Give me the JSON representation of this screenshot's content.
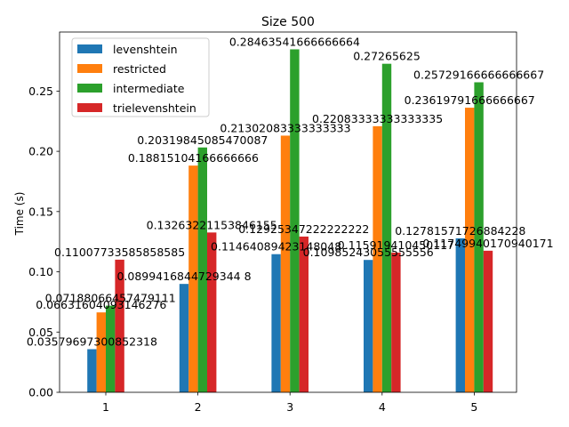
{
  "chart_data": {
    "type": "bar",
    "title": "Size 500",
    "xlabel": "",
    "ylabel": "Time (s)",
    "categories": [
      "1",
      "2",
      "3",
      "4",
      "5"
    ],
    "ylim": [
      0,
      0.299
    ],
    "yticks": [
      "0.00",
      "0.05",
      "0.10",
      "0.15",
      "0.20",
      "0.25"
    ],
    "ytick_values": [
      0,
      0.05,
      0.1,
      0.15,
      0.2,
      0.25
    ],
    "legend_position": "top-left",
    "grid": false,
    "series": [
      {
        "name": "levenshtein",
        "color": "#1f77b4",
        "values": [
          0.03579697300852318,
          0.0899416844729344,
          0.11464089423148048,
          0.10985243055555556,
          0.12781571726884228
        ],
        "labels": [
          "0.03579697300852318",
          "0.0899416844729344 8",
          "0.11464089423148048",
          "0.10985243055555556",
          "0.12781571726884228"
        ]
      },
      {
        "name": "restricted",
        "color": "#ff7f0e",
        "values": [
          0.06631604093146276,
          0.18815104166666666,
          0.21302083333333333,
          0.22083333333333335,
          0.23619791666666667
        ],
        "labels": [
          "0.06631604093146276",
          "0.18815104166666666",
          "0.21302083333333333",
          "0.22083333333333335",
          "0.23619791666666667"
        ]
      },
      {
        "name": "intermediate",
        "color": "#2ca02c",
        "values": [
          0.07188066457479111,
          0.20319845085470087,
          0.28463541666666664,
          0.27265625,
          0.2572916666666667
        ],
        "labels": [
          "0.07188066457479111",
          "0.20319845085470087",
          "0.28463541666666664",
          "0.27265625",
          "0.25729166666666667"
        ]
      },
      {
        "name": "trielevenshtein",
        "color": "#d62728",
        "values": [
          0.11007733585858585,
          0.13263221153846155,
          0.12925347222222222,
          0.11591941045011,
          0.11749940170940171
        ],
        "labels": [
          "0.11007733585858585",
          "0.13263221153846155",
          "0.12925347222222222",
          "0.115919410450117",
          "0.11749940170940171"
        ]
      }
    ]
  }
}
